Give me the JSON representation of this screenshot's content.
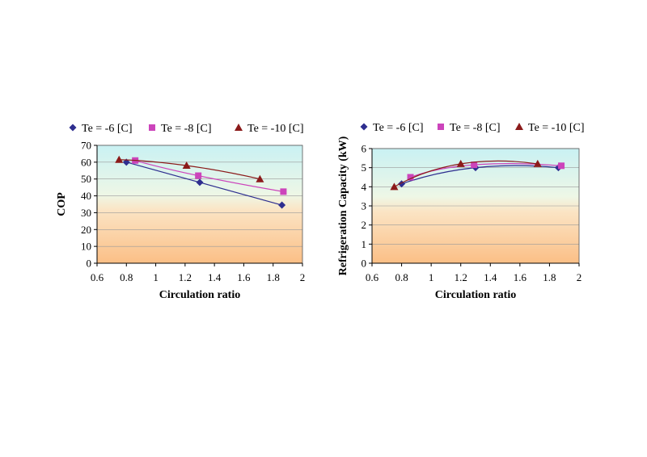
{
  "chart_data": [
    {
      "type": "line",
      "xlabel": "Circulation ratio",
      "ylabel": "COP",
      "xlim": [
        0.6,
        2
      ],
      "ylim": [
        0,
        70
      ],
      "xticks": [
        "0.6",
        "0.8",
        "1",
        "1.2",
        "1.4",
        "1.6",
        "1.8",
        "2"
      ],
      "yticks": [
        "0",
        "10",
        "20",
        "30",
        "40",
        "50",
        "60",
        "70"
      ],
      "grid": true,
      "legend_position": "top",
      "series": [
        {
          "name": "Te = -6 [C]",
          "marker": "diamond",
          "color": "#2e2e8f",
          "x": [
            0.8,
            1.3,
            1.86
          ],
          "y": [
            60,
            48,
            34.5
          ]
        },
        {
          "name": "Te = -8 [C]",
          "marker": "square",
          "color": "#cc44bb",
          "x": [
            0.86,
            1.29,
            1.87
          ],
          "y": [
            61,
            52,
            42.5
          ]
        },
        {
          "name": "Te = -10 [C]",
          "marker": "triangle",
          "color": "#8b1a1a",
          "x": [
            0.75,
            1.21,
            1.71
          ],
          "y": [
            61.5,
            58,
            50
          ]
        }
      ]
    },
    {
      "type": "line",
      "xlabel": "Circulation ratio",
      "ylabel": "Refrigeration Capacity (kW)",
      "xlim": [
        0.6,
        2
      ],
      "ylim": [
        0,
        6
      ],
      "xticks": [
        "0.6",
        "0.8",
        "1",
        "1.2",
        "1.4",
        "1.6",
        "1.8",
        "2"
      ],
      "yticks": [
        "0",
        "1",
        "2",
        "3",
        "4",
        "5",
        "6"
      ],
      "grid": true,
      "legend_position": "top",
      "series": [
        {
          "name": "Te = -6 [C]",
          "marker": "diamond",
          "color": "#2e2e8f",
          "x": [
            0.8,
            1.3,
            1.86
          ],
          "y": [
            4.15,
            5.0,
            5.0
          ]
        },
        {
          "name": "Te = -8 [C]",
          "marker": "square",
          "color": "#cc44bb",
          "x": [
            0.86,
            1.29,
            1.88
          ],
          "y": [
            4.5,
            5.15,
            5.1
          ]
        },
        {
          "name": "Te = -10 [C]",
          "marker": "triangle",
          "color": "#8b1a1a",
          "x": [
            0.75,
            1.2,
            1.72
          ],
          "y": [
            4.0,
            5.2,
            5.2
          ]
        }
      ]
    }
  ]
}
